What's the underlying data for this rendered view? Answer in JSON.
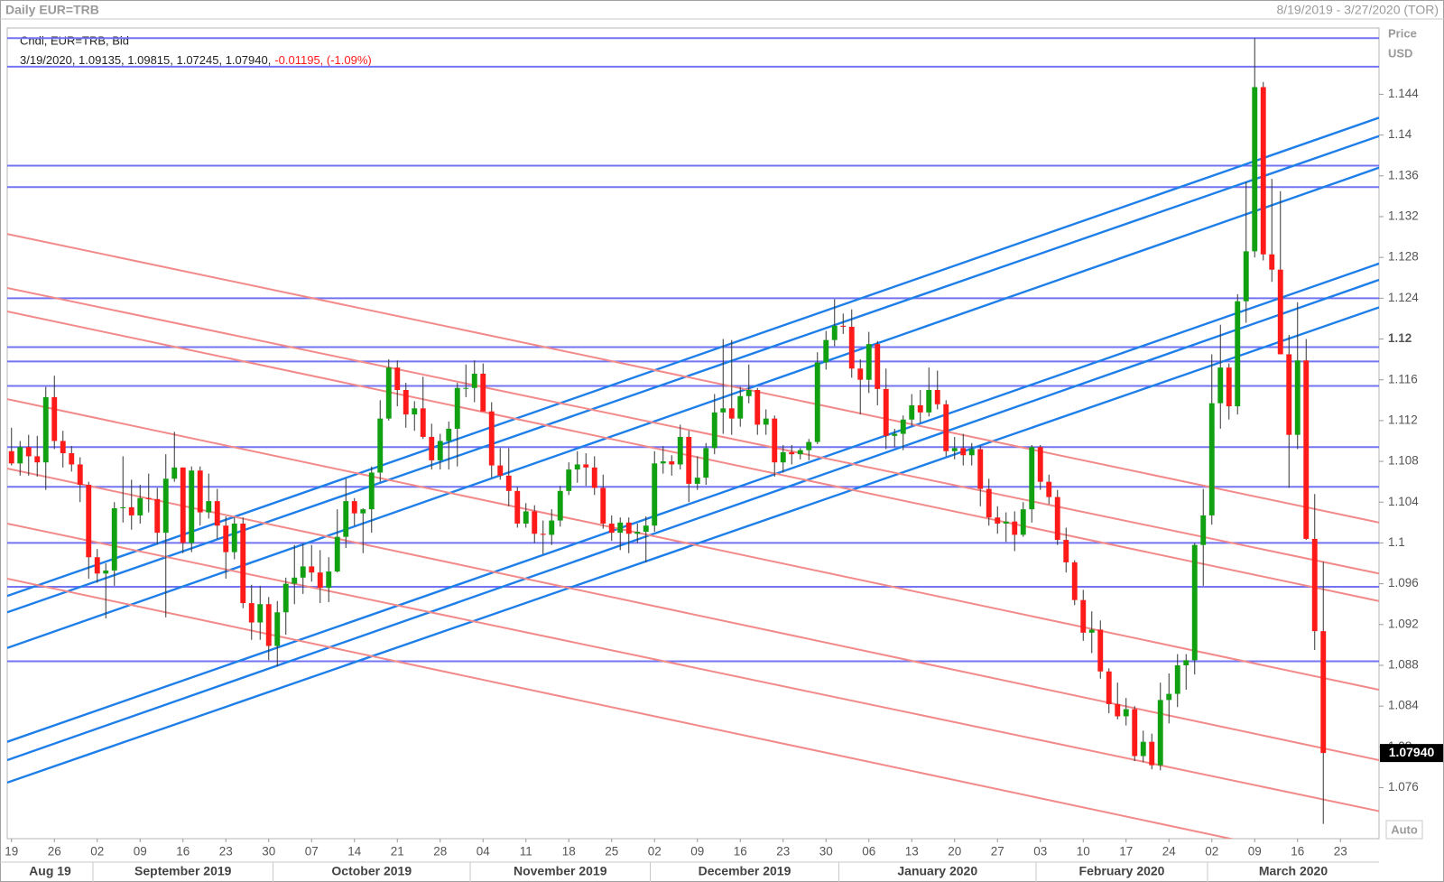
{
  "chart_data": {
    "type": "candlestick",
    "title": "Daily EUR=TRB",
    "date_range": "8/19/2019 - 3/27/2020 (TOR)",
    "legend_title": "Cndl, EUR=TRB, Bid",
    "legend_values": "3/19/2020, 1.09135, 1.09815, 1.07245, 1.07940,",
    "legend_change": "-0.01195, (-1.09%)",
    "axis_label": "Price",
    "axis_unit": "USD",
    "scale_button": "Auto",
    "last_price_label": "1.07940",
    "up_color": "#11a011",
    "down_color": "#ff1a1a",
    "x": [
      "8/19/2019",
      "8/20/2019",
      "8/21/2019",
      "8/22/2019",
      "8/23/2019",
      "8/26/2019",
      "8/27/2019",
      "8/28/2019",
      "8/29/2019",
      "8/30/2019",
      "9/2/2019",
      "9/3/2019",
      "9/4/2019",
      "9/5/2019",
      "9/6/2019",
      "9/9/2019",
      "9/10/2019",
      "9/11/2019",
      "9/12/2019",
      "9/13/2019",
      "9/16/2019",
      "9/17/2019",
      "9/18/2019",
      "9/19/2019",
      "9/20/2019",
      "9/23/2019",
      "9/24/2019",
      "9/25/2019",
      "9/26/2019",
      "9/27/2019",
      "9/30/2019",
      "10/1/2019",
      "10/2/2019",
      "10/3/2019",
      "10/4/2019",
      "10/7/2019",
      "10/8/2019",
      "10/9/2019",
      "10/10/2019",
      "10/11/2019",
      "10/14/2019",
      "10/15/2019",
      "10/16/2019",
      "10/17/2019",
      "10/18/2019",
      "10/21/2019",
      "10/22/2019",
      "10/23/2019",
      "10/24/2019",
      "10/25/2019",
      "10/28/2019",
      "10/29/2019",
      "10/30/2019",
      "10/31/2019",
      "11/1/2019",
      "11/4/2019",
      "11/5/2019",
      "11/6/2019",
      "11/7/2019",
      "11/8/2019",
      "11/11/2019",
      "11/12/2019",
      "11/13/2019",
      "11/14/2019",
      "11/15/2019",
      "11/18/2019",
      "11/19/2019",
      "11/20/2019",
      "11/21/2019",
      "11/22/2019",
      "11/25/2019",
      "11/26/2019",
      "11/27/2019",
      "11/28/2019",
      "11/29/2019",
      "12/2/2019",
      "12/3/2019",
      "12/4/2019",
      "12/5/2019",
      "12/6/2019",
      "12/9/2019",
      "12/10/2019",
      "12/11/2019",
      "12/12/2019",
      "12/13/2019",
      "12/16/2019",
      "12/17/2019",
      "12/18/2019",
      "12/19/2019",
      "12/20/2019",
      "12/23/2019",
      "12/24/2019",
      "12/25/2019",
      "12/26/2019",
      "12/27/2019",
      "12/30/2019",
      "12/31/2019",
      "1/1/2020",
      "1/2/2020",
      "1/3/2020",
      "1/6/2020",
      "1/7/2020",
      "1/8/2020",
      "1/9/2020",
      "1/10/2020",
      "1/13/2020",
      "1/14/2020",
      "1/15/2020",
      "1/16/2020",
      "1/17/2020",
      "1/20/2020",
      "1/21/2020",
      "1/22/2020",
      "1/23/2020",
      "1/24/2020",
      "1/27/2020",
      "1/28/2020",
      "1/29/2020",
      "1/30/2020",
      "1/31/2020",
      "2/3/2020",
      "2/4/2020",
      "2/5/2020",
      "2/6/2020",
      "2/7/2020",
      "2/10/2020",
      "2/11/2020",
      "2/12/2020",
      "2/13/2020",
      "2/14/2020",
      "2/17/2020",
      "2/18/2020",
      "2/19/2020",
      "2/20/2020",
      "2/21/2020",
      "2/24/2020",
      "2/25/2020",
      "2/26/2020",
      "2/27/2020",
      "2/28/2020",
      "3/2/2020",
      "3/3/2020",
      "3/4/2020",
      "3/5/2020",
      "3/6/2020",
      "3/9/2020",
      "3/10/2020",
      "3/11/2020",
      "3/12/2020",
      "3/13/2020",
      "3/16/2020",
      "3/17/2020",
      "3/18/2020",
      "3/19/2020"
    ],
    "open": [
      1.109,
      1.1078,
      1.1094,
      1.1085,
      1.1079,
      1.1143,
      1.11,
      1.1088,
      1.1077,
      1.1057,
      1.0986,
      1.097,
      1.0973,
      1.1034,
      1.1035,
      1.1027,
      1.1044,
      1.1043,
      1.101,
      1.1063,
      1.1074,
      1.1,
      1.1071,
      1.103,
      1.1041,
      1.1017,
      1.0991,
      1.1019,
      1.0941,
      1.0922,
      1.094,
      1.0899,
      1.0932,
      1.096,
      1.0966,
      1.0977,
      1.0971,
      1.0956,
      1.0972,
      1.1006,
      1.1041,
      1.1029,
      1.1033,
      1.1069,
      1.1122,
      1.1172,
      1.115,
      1.1126,
      1.1132,
      1.1104,
      1.1081,
      1.11,
      1.1112,
      1.1152,
      1.1152,
      1.1166,
      1.1129,
      1.1076,
      1.1066,
      1.1051,
      1.1019,
      1.1031,
      1.1009,
      1.1008,
      1.1022,
      1.1051,
      1.1072,
      1.1077,
      1.1074,
      1.1054,
      1.1019,
      1.101,
      1.102,
      1.1009,
      1.1011,
      1.1017,
      1.1078,
      1.108,
      1.1077,
      1.1104,
      1.1058,
      1.1064,
      1.1093,
      1.1128,
      1.1132,
      1.1122,
      1.1144,
      1.115,
      1.1116,
      1.1122,
      1.1079,
      1.1089,
      1.1087,
      1.1091,
      1.1099,
      1.1177,
      1.1199,
      1.1213,
      1.1212,
      1.1171,
      1.116,
      1.1195,
      1.1151,
      1.1105,
      1.1107,
      1.1121,
      1.1135,
      1.1128,
      1.115,
      1.1136,
      1.109,
      1.1093,
      1.1086,
      1.1092,
      1.1053,
      1.1025,
      1.1019,
      1.1021,
      1.1008,
      1.1033,
      1.1094,
      1.106,
      1.1045,
      1.1003,
      1.0981,
      1.0944,
      1.0912,
      1.0915,
      1.0874,
      1.0842,
      1.083,
      1.0837,
      1.0791,
      1.0805,
      1.0782,
      1.0846,
      1.0852,
      1.088,
      1.0885,
      1.0998,
      1.1027,
      1.1137,
      1.1172,
      1.1134,
      1.1237,
      1.1286,
      1.1447,
      1.1283,
      1.1268,
      1.1185,
      1.1106,
      1.1179,
      1.1004,
      1.09135
    ],
    "high": [
      1.1113,
      1.11,
      1.1106,
      1.1105,
      1.1153,
      1.1164,
      1.111,
      1.1095,
      1.1084,
      1.106,
      1.0994,
      1.098,
      1.104,
      1.1085,
      1.1062,
      1.1057,
      1.1068,
      1.1054,
      1.1087,
      1.1109,
      1.1074,
      1.1075,
      1.1075,
      1.1068,
      1.1053,
      1.1026,
      1.1025,
      1.1025,
      1.0959,
      1.0958,
      1.0947,
      1.0943,
      1.0966,
      1.0998,
      1.0999,
      1.0998,
      1.0993,
      1.0986,
      1.1033,
      1.1063,
      1.1044,
      1.1034,
      1.1075,
      1.114,
      1.118,
      1.1179,
      1.1157,
      1.1139,
      1.1163,
      1.1117,
      1.1107,
      1.1119,
      1.1157,
      1.1175,
      1.1179,
      1.1176,
      1.1138,
      1.1093,
      1.1093,
      1.1055,
      1.1039,
      1.1037,
      1.1022,
      1.1033,
      1.1056,
      1.1079,
      1.109,
      1.1088,
      1.1085,
      1.1067,
      1.1027,
      1.1025,
      1.1025,
      1.1019,
      1.1026,
      1.109,
      1.1095,
      1.1086,
      1.1116,
      1.111,
      1.1085,
      1.1098,
      1.1146,
      1.12,
      1.1199,
      1.1153,
      1.1175,
      1.1152,
      1.1131,
      1.1125,
      1.1096,
      1.1096,
      1.1093,
      1.1102,
      1.1187,
      1.1208,
      1.1239,
      1.1225,
      1.1229,
      1.118,
      1.1207,
      1.1198,
      1.1171,
      1.1112,
      1.1125,
      1.1146,
      1.115,
      1.1172,
      1.1169,
      1.114,
      1.1104,
      1.1107,
      1.1098,
      1.1095,
      1.1063,
      1.1036,
      1.103,
      1.1031,
      1.104,
      1.1096,
      1.1096,
      1.1067,
      1.1052,
      1.1015,
      1.0983,
      1.0954,
      1.0933,
      1.0924,
      1.0877,
      1.0863,
      1.0848,
      1.084,
      1.0816,
      1.0813,
      1.0863,
      1.0872,
      1.0891,
      1.0891,
      1.1,
      1.1053,
      1.1185,
      1.1214,
      1.1176,
      1.1244,
      1.1354,
      1.1495,
      1.1452,
      1.1357,
      1.1345,
      1.1204,
      1.1236,
      1.12,
      1.1048,
      1.09815
    ],
    "low": [
      1.1076,
      1.1066,
      1.1066,
      1.1065,
      1.1052,
      1.1092,
      1.1074,
      1.107,
      1.104,
      1.0965,
      1.0961,
      1.0926,
      1.0958,
      1.102,
      1.1013,
      1.1019,
      1.103,
      1.0999,
      1.0927,
      1.106,
      1.099,
      1.0991,
      1.1017,
      1.1024,
      1.1004,
      1.0965,
      1.0984,
      1.0936,
      1.0905,
      1.0905,
      1.0885,
      1.0879,
      1.091,
      1.094,
      1.095,
      1.0962,
      1.0941,
      1.0942,
      1.0971,
      1.0995,
      1.1017,
      1.099,
      1.101,
      1.106,
      1.112,
      1.1134,
      1.1113,
      1.111,
      1.1102,
      1.1072,
      1.1072,
      1.1072,
      1.1075,
      1.1143,
      1.1138,
      1.1129,
      1.1064,
      1.1062,
      1.1036,
      1.1015,
      1.1015,
      1.1,
      1.0989,
      1.0998,
      1.1016,
      1.1047,
      1.1059,
      1.1056,
      1.1047,
      1.1014,
      1.1002,
      1.0993,
      1.099,
      1.1,
      1.0981,
      1.1011,
      1.1068,
      1.1066,
      1.1072,
      1.104,
      1.1052,
      1.1057,
      1.1087,
      1.1107,
      1.1106,
      1.1114,
      1.1137,
      1.1106,
      1.1106,
      1.1065,
      1.1069,
      1.1077,
      1.1082,
      1.1081,
      1.1097,
      1.117,
      1.1193,
      1.1205,
      1.1162,
      1.1126,
      1.1147,
      1.1135,
      1.1092,
      1.1094,
      1.1091,
      1.1115,
      1.1118,
      1.1124,
      1.1131,
      1.1085,
      1.1082,
      1.1076,
      1.1076,
      1.1036,
      1.1017,
      1.1009,
      1.1001,
      1.0992,
      1.1006,
      1.102,
      1.1052,
      1.1038,
      1.0998,
      1.0971,
      1.0939,
      1.0904,
      1.0892,
      1.0867,
      1.0833,
      1.0827,
      1.0821,
      1.0786,
      1.0785,
      1.0778,
      1.0777,
      1.0823,
      1.0839,
      1.0856,
      1.0871,
      1.0958,
      1.1018,
      1.1112,
      1.1121,
      1.1126,
      1.1216,
      1.128,
      1.1277,
      1.1256,
      1.1185,
      1.1054,
      1.1092,
      1.1003,
      1.0895,
      1.07245
    ],
    "close": [
      1.1078,
      1.1094,
      1.1085,
      1.1079,
      1.1143,
      1.11,
      1.1088,
      1.1077,
      1.1057,
      1.0986,
      1.097,
      1.0973,
      1.1034,
      1.1035,
      1.1027,
      1.1044,
      1.1043,
      1.101,
      1.1063,
      1.1074,
      1.1,
      1.1071,
      1.103,
      1.1041,
      1.1017,
      1.0991,
      1.1019,
      1.0941,
      1.0922,
      1.094,
      1.0899,
      1.0932,
      1.096,
      1.0966,
      1.0977,
      1.0971,
      1.0956,
      1.0972,
      1.1006,
      1.1041,
      1.1029,
      1.1033,
      1.1069,
      1.1122,
      1.1172,
      1.115,
      1.1126,
      1.1132,
      1.1104,
      1.1081,
      1.11,
      1.1112,
      1.1152,
      1.1152,
      1.1166,
      1.1129,
      1.1076,
      1.1066,
      1.1051,
      1.1019,
      1.1031,
      1.1009,
      1.1008,
      1.1022,
      1.1051,
      1.1072,
      1.1077,
      1.1074,
      1.1054,
      1.1019,
      1.101,
      1.102,
      1.1009,
      1.1011,
      1.1017,
      1.1078,
      1.108,
      1.1077,
      1.1104,
      1.1058,
      1.1064,
      1.1093,
      1.1128,
      1.1132,
      1.1122,
      1.1144,
      1.115,
      1.1116,
      1.1122,
      1.1079,
      1.1089,
      1.1087,
      1.1091,
      1.1099,
      1.1177,
      1.1199,
      1.1213,
      1.1212,
      1.1171,
      1.116,
      1.1195,
      1.1151,
      1.1105,
      1.1107,
      1.1121,
      1.1135,
      1.1128,
      1.115,
      1.1136,
      1.109,
      1.1093,
      1.1086,
      1.1092,
      1.1053,
      1.1025,
      1.1019,
      1.1021,
      1.1008,
      1.1033,
      1.1094,
      1.106,
      1.1045,
      1.1003,
      1.0981,
      1.0944,
      1.0912,
      1.0915,
      1.0874,
      1.0842,
      1.083,
      1.0837,
      1.0791,
      1.0805,
      1.0782,
      1.0846,
      1.0852,
      1.088,
      1.0885,
      1.0998,
      1.1027,
      1.1137,
      1.1172,
      1.1134,
      1.1237,
      1.1286,
      1.1447,
      1.1283,
      1.1268,
      1.1185,
      1.1106,
      1.1179,
      1.1004,
      1.09135,
      1.0794
    ],
    "xlim": [
      "8/19/2019",
      "3/27/2020"
    ],
    "ylim": [
      1.071,
      1.1505
    ],
    "yticks": [
      1.076,
      1.08,
      1.084,
      1.088,
      1.092,
      1.096,
      1.1,
      1.104,
      1.108,
      1.112,
      1.116,
      1.12,
      1.124,
      1.128,
      1.132,
      1.136,
      1.14,
      1.144
    ],
    "xticks": [
      {
        "value": "8/19/2019",
        "label": "19"
      },
      {
        "value": "8/26/2019",
        "label": "26"
      },
      {
        "value": "9/2/2019",
        "label": "02"
      },
      {
        "value": "9/9/2019",
        "label": "09"
      },
      {
        "value": "9/16/2019",
        "label": "16"
      },
      {
        "value": "9/23/2019",
        "label": "23"
      },
      {
        "value": "9/30/2019",
        "label": "30"
      },
      {
        "value": "10/7/2019",
        "label": "07"
      },
      {
        "value": "10/14/2019",
        "label": "14"
      },
      {
        "value": "10/21/2019",
        "label": "21"
      },
      {
        "value": "10/28/2019",
        "label": "28"
      },
      {
        "value": "11/4/2019",
        "label": "04"
      },
      {
        "value": "11/11/2019",
        "label": "11"
      },
      {
        "value": "11/18/2019",
        "label": "18"
      },
      {
        "value": "11/25/2019",
        "label": "25"
      },
      {
        "value": "12/2/2019",
        "label": "02"
      },
      {
        "value": "12/9/2019",
        "label": "09"
      },
      {
        "value": "12/16/2019",
        "label": "16"
      },
      {
        "value": "12/23/2019",
        "label": "23"
      },
      {
        "value": "12/30/2019",
        "label": "30"
      },
      {
        "value": "1/6/2020",
        "label": "06"
      },
      {
        "value": "1/13/2020",
        "label": "13"
      },
      {
        "value": "1/20/2020",
        "label": "20"
      },
      {
        "value": "1/27/2020",
        "label": "27"
      },
      {
        "value": "2/3/2020",
        "label": "03"
      },
      {
        "value": "2/10/2020",
        "label": "10"
      },
      {
        "value": "2/17/2020",
        "label": "17"
      },
      {
        "value": "2/24/2020",
        "label": "24"
      },
      {
        "value": "3/2/2020",
        "label": "02"
      },
      {
        "value": "3/9/2020",
        "label": "09"
      },
      {
        "value": "3/16/2020",
        "label": "16"
      },
      {
        "value": "3/23/2020",
        "label": "23"
      }
    ],
    "months": [
      {
        "value": "8/1/2019",
        "label": "Aug 19"
      },
      {
        "value": "9/1/2019",
        "label": "September 2019"
      },
      {
        "value": "10/1/2019",
        "label": "October 2019"
      },
      {
        "value": "11/1/2019",
        "label": "November 2019"
      },
      {
        "value": "12/1/2019",
        "label": "December 2019"
      },
      {
        "value": "1/1/2020",
        "label": "January 2020"
      },
      {
        "value": "2/1/2020",
        "label": "February 2020"
      },
      {
        "value": "3/1/2020",
        "label": "March 2020"
      }
    ],
    "hlines": {
      "color": "#7474f2",
      "values": [
        1.1495,
        1.1467,
        1.137,
        1.1349,
        1.124,
        1.1192,
        1.1178,
        1.1154,
        1.1094,
        1.1055,
        1.1,
        1.0957,
        1.0884
      ]
    },
    "trendlines": [
      {
        "color": "#1f7fe8",
        "from": 1.0948,
        "to": 1.1417
      },
      {
        "color": "#1f7fe8",
        "from": 1.0932,
        "to": 1.1399
      },
      {
        "color": "#1f7fe8",
        "from": 1.0897,
        "to": 1.1368
      },
      {
        "color": "#1f7fe8",
        "from": 1.0805,
        "to": 1.1274
      },
      {
        "color": "#1f7fe8",
        "from": 1.0787,
        "to": 1.1258
      },
      {
        "color": "#1f7fe8",
        "from": 1.0765,
        "to": 1.1231
      },
      {
        "color": "#f28a8a",
        "from": 1.1303,
        "to": 1.102
      },
      {
        "color": "#f28a8a",
        "from": 1.125,
        "to": 1.097
      },
      {
        "color": "#f28a8a",
        "from": 1.1227,
        "to": 1.0943
      },
      {
        "color": "#f28a8a",
        "from": 1.1141,
        "to": 1.0856
      },
      {
        "color": "#f28a8a",
        "from": 1.1073,
        "to": 1.0787
      },
      {
        "color": "#f28a8a",
        "from": 1.1019,
        "to": 1.0737
      },
      {
        "color": "#f28a8a",
        "from": 1.0965,
        "to": 1.0679
      }
    ]
  }
}
